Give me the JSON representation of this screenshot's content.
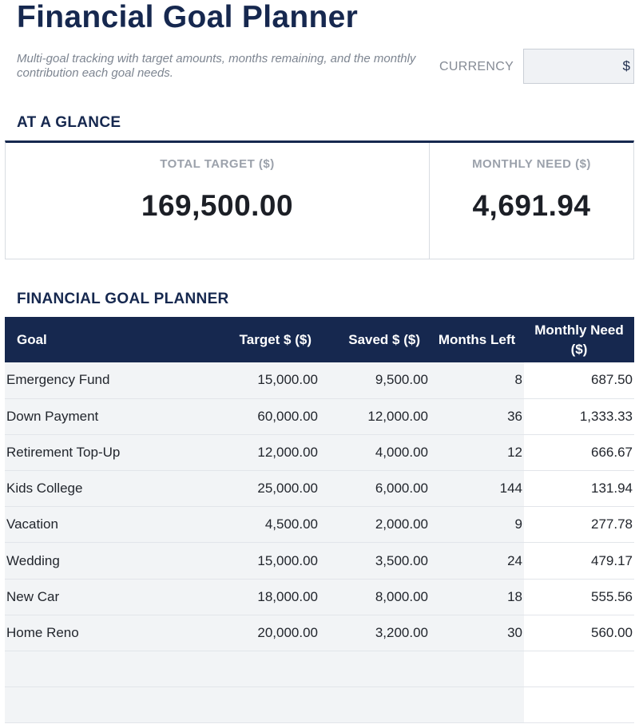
{
  "header": {
    "title": "Financial Goal Planner",
    "subtitle": "Multi-goal tracking with target amounts, months remaining, and the monthly contribution each goal needs.",
    "currency_label": "CURRENCY",
    "currency_value": "$"
  },
  "glance": {
    "heading": "AT A GLANCE",
    "total_target_label": "TOTAL TARGET ($)",
    "total_target_value": "169,500.00",
    "monthly_need_label": "MONTHLY NEED ($)",
    "monthly_need_value": "4,691.94"
  },
  "planner": {
    "heading": "FINANCIAL GOAL PLANNER",
    "columns": {
      "goal": "Goal",
      "target": "Target $ ($)",
      "saved": "Saved $ ($)",
      "months": "Months Left",
      "need": "Monthly Need ($)"
    },
    "rows": [
      {
        "goal": "Emergency Fund",
        "target": "15,000.00",
        "saved": "9,500.00",
        "months": "8",
        "need": "687.50"
      },
      {
        "goal": "Down Payment",
        "target": "60,000.00",
        "saved": "12,000.00",
        "months": "36",
        "need": "1,333.33"
      },
      {
        "goal": "Retirement Top-Up",
        "target": "12,000.00",
        "saved": "4,000.00",
        "months": "12",
        "need": "666.67"
      },
      {
        "goal": "Kids College",
        "target": "25,000.00",
        "saved": "6,000.00",
        "months": "144",
        "need": "131.94"
      },
      {
        "goal": "Vacation",
        "target": "4,500.00",
        "saved": "2,000.00",
        "months": "9",
        "need": "277.78"
      },
      {
        "goal": "Wedding",
        "target": "15,000.00",
        "saved": "3,500.00",
        "months": "24",
        "need": "479.17"
      },
      {
        "goal": "New Car",
        "target": "18,000.00",
        "saved": "8,000.00",
        "months": "18",
        "need": "555.56"
      },
      {
        "goal": "Home Reno",
        "target": "20,000.00",
        "saved": "3,200.00",
        "months": "30",
        "need": "560.00"
      },
      {
        "goal": "",
        "target": "",
        "saved": "",
        "months": "",
        "need": ""
      },
      {
        "goal": "",
        "target": "",
        "saved": "",
        "months": "",
        "need": ""
      }
    ]
  }
}
